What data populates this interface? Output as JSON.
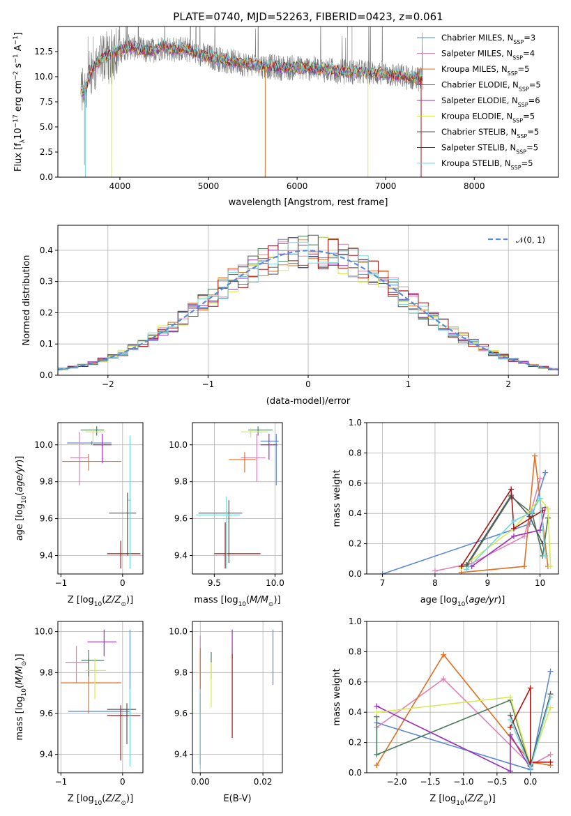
{
  "title": "PLATE=0740, MJD=52263, FIBERID=0423, z=0.061",
  "colors": {
    "Chabrier MILES": "#5a88d6",
    "Salpeter MILES": "#e080b8",
    "Kroupa MILES": "#e07020",
    "Chabrier ELODIE": "#4a7a5a",
    "Salpeter ELODIE": "#9a30b8",
    "Kroupa ELODIE": "#d8ea50",
    "Chabrier STELIB": "#555555",
    "Salpeter STELIB": "#b01010",
    "Kroupa STELIB": "#70d8e0"
  },
  "chart_data": [
    {
      "id": "spectrum",
      "type": "line",
      "title": "PLATE=0740, MJD=52263, FIBERID=0423, z=0.061",
      "xlabel": "wavelength [Angstrom, rest frame]",
      "ylabel": "Flux [f_λ 10^-17 erg cm^-2 s^-1 A^-1]",
      "xlim": [
        3300,
        8950
      ],
      "ylim": [
        0,
        15
      ],
      "xticks": [
        "4000",
        "5000",
        "6000",
        "7000",
        "8000"
      ],
      "yticks": [
        "0.0",
        "2.5",
        "5.0",
        "7.5",
        "10.0",
        "12.5"
      ],
      "legend_position": "top-right",
      "legend": [
        {
          "name": "Chabrier MILES",
          "nssp": "3"
        },
        {
          "name": "Salpeter MILES",
          "nssp": "4"
        },
        {
          "name": "Kroupa MILES",
          "nssp": "5"
        },
        {
          "name": "Chabrier ELODIE",
          "nssp": "5"
        },
        {
          "name": "Salpeter ELODIE",
          "nssp": "6"
        },
        {
          "name": "Kroupa ELODIE",
          "nssp": "5"
        },
        {
          "name": "Chabrier STELIB",
          "nssp": "5"
        },
        {
          "name": "Salpeter STELIB",
          "nssp": "5"
        },
        {
          "name": "Kroupa STELIB",
          "nssp": "5"
        }
      ],
      "legend_prefix": "N",
      "legend_sub": "SSP",
      "continuum": {
        "x": [
          3600,
          3700,
          3800,
          3900,
          4000,
          4100,
          4200,
          4300,
          4400,
          4500,
          4600,
          4700,
          4800,
          4900,
          5000,
          5200,
          5400,
          5600,
          5800,
          6000,
          6200,
          6400,
          6600,
          6800,
          7000,
          7200,
          7400
        ],
        "y": [
          8.5,
          11.0,
          11.8,
          12.3,
          12.6,
          13.0,
          12.8,
          12.5,
          12.7,
          13.0,
          12.7,
          12.8,
          12.6,
          12.2,
          12.0,
          11.6,
          11.3,
          11.1,
          10.9,
          10.9,
          10.8,
          10.6,
          10.5,
          10.4,
          10.3,
          10.0,
          9.8
        ]
      }
    },
    {
      "id": "residuals",
      "type": "bar",
      "xlabel": "(data-model)/error",
      "ylabel": "Normed distribution",
      "xlim": [
        -2.5,
        2.5
      ],
      "ylim": [
        0,
        0.48
      ],
      "xticks": [
        "−2",
        "−1",
        "0",
        "1",
        "2"
      ],
      "yticks": [
        "0.0",
        "0.1",
        "0.2",
        "0.3",
        "0.4"
      ],
      "legend_position": "top-right",
      "legend": [
        "𝒩(0, 1)"
      ],
      "gaussian": {
        "mu": 0,
        "sigma": 1
      }
    },
    {
      "id": "age-vs-Z",
      "type": "scatter",
      "xlabel": "Z [log10(Z/Z⊙)]",
      "ylabel": "age  [log10(age/yr)]",
      "xlim": [
        -1.05,
        0.33
      ],
      "ylim": [
        9.3,
        10.12
      ],
      "xticks": [
        "−1",
        "0"
      ],
      "yticks": [
        "9.4",
        "9.6",
        "9.8",
        "10.0"
      ],
      "points": [
        {
          "s": "Chabrier MILES",
          "x": -0.5,
          "y": 10.01,
          "xl": -0.9,
          "xr": -0.18,
          "yl": 10.0,
          "yh": 10.02
        },
        {
          "s": "Salpeter MILES",
          "x": -0.7,
          "y": 9.93,
          "xl": -0.85,
          "xr": -0.56,
          "yl": 9.78,
          "yh": 10.07
        },
        {
          "s": "Kroupa MILES",
          "x": -0.55,
          "y": 9.91,
          "xl": -0.98,
          "xr": -0.02,
          "yl": 9.86,
          "yh": 9.95
        },
        {
          "s": "Chabrier ELODIE",
          "x": -0.42,
          "y": 10.08,
          "xl": -0.68,
          "xr": -0.3,
          "yl": 10.05,
          "yh": 10.1
        },
        {
          "s": "Salpeter ELODIE",
          "x": -0.33,
          "y": 10.0,
          "xl": -0.48,
          "xr": -0.18,
          "yl": 9.9,
          "yh": 10.06
        },
        {
          "s": "Kroupa ELODIE",
          "x": -0.48,
          "y": 10.07,
          "xl": -0.6,
          "xr": -0.28,
          "yl": 10.01,
          "yh": 10.09
        },
        {
          "s": "Chabrier STELIB",
          "x": 0.08,
          "y": 9.63,
          "xl": -0.22,
          "xr": 0.22,
          "yl": 9.4,
          "yh": 9.74
        },
        {
          "s": "Salpeter STELIB",
          "x": -0.03,
          "y": 9.41,
          "xl": -0.25,
          "xr": 0.29,
          "yl": 9.33,
          "yh": 9.48
        },
        {
          "s": "Kroupa STELIB",
          "x": 0.12,
          "y": 9.7,
          "xl": 0.09,
          "xr": 0.14,
          "yl": 9.33,
          "yh": 10.05
        }
      ]
    },
    {
      "id": "age-vs-mass",
      "type": "scatter",
      "xlabel": "mass [log10(M/M⊙)]",
      "ylabel": "",
      "xlim": [
        9.32,
        10.06
      ],
      "ylim": [
        9.3,
        10.12
      ],
      "xticks": [
        "9.5",
        "10.0"
      ],
      "yticks": [
        "9.4",
        "9.6",
        "9.8",
        "10.0"
      ],
      "points": [
        {
          "s": "Chabrier MILES",
          "x": 10.01,
          "y": 10.02,
          "xl": 9.88,
          "xr": 10.03,
          "yl": 9.78,
          "yh": 10.06
        },
        {
          "s": "Salpeter MILES",
          "x": 9.85,
          "y": 9.93,
          "xl": 9.72,
          "xr": 9.92,
          "yl": 9.8,
          "yh": 10.06
        },
        {
          "s": "Kroupa MILES",
          "x": 9.75,
          "y": 9.92,
          "xl": 9.62,
          "xr": 9.84,
          "yl": 9.85,
          "yh": 9.96
        },
        {
          "s": "Chabrier ELODIE",
          "x": 9.86,
          "y": 10.08,
          "xl": 9.78,
          "xr": 9.98,
          "yl": 10.05,
          "yh": 10.1
        },
        {
          "s": "Salpeter ELODIE",
          "x": 9.95,
          "y": 10.0,
          "xl": 9.88,
          "xr": 10.02,
          "yl": 9.92,
          "yh": 10.06
        },
        {
          "s": "Kroupa ELODIE",
          "x": 9.8,
          "y": 10.07,
          "xl": 9.72,
          "xr": 9.94,
          "yl": 10.04,
          "yh": 10.09
        },
        {
          "s": "Chabrier STELIB",
          "x": 9.62,
          "y": 9.63,
          "xl": 9.37,
          "xr": 9.73,
          "yl": 9.36,
          "yh": 9.7
        },
        {
          "s": "Salpeter STELIB",
          "x": 9.59,
          "y": 9.41,
          "xl": 9.5,
          "xr": 9.88,
          "yl": 9.33,
          "yh": 9.58
        },
        {
          "s": "Kroupa STELIB",
          "x": 9.6,
          "y": 9.62,
          "xl": 9.35,
          "xr": 9.71,
          "yl": 9.33,
          "yh": 9.72
        }
      ]
    },
    {
      "id": "weight-vs-age",
      "type": "line",
      "xlabel": "age  [log10(age/yr)]",
      "ylabel": "mass weight",
      "xlim": [
        6.7,
        10.35
      ],
      "ylim": [
        0,
        1.0
      ],
      "xticks": [
        "7",
        "8",
        "9",
        "10"
      ],
      "yticks": [
        "0.0",
        "0.2",
        "0.4",
        "0.6",
        "0.8",
        "1.0"
      ],
      "series": [
        {
          "s": "Chabrier MILES",
          "x": [
            7.0,
            9.8,
            10.1
          ],
          "y": [
            0.0,
            0.33,
            0.67
          ]
        },
        {
          "s": "Salpeter MILES",
          "x": [
            8.0,
            8.7,
            9.7,
            10.0
          ],
          "y": [
            0.02,
            0.07,
            0.25,
            0.63
          ]
        },
        {
          "s": "Kroupa MILES",
          "x": [
            8.5,
            9.7,
            9.9,
            10.15
          ],
          "y": [
            0.01,
            0.05,
            0.78,
            0.05
          ]
        },
        {
          "s": "Chabrier ELODIE",
          "x": [
            8.6,
            9.45,
            9.85,
            10.05,
            10.15
          ],
          "y": [
            0.05,
            0.51,
            0.4,
            0.12,
            0.37
          ]
        },
        {
          "s": "Salpeter ELODIE",
          "x": [
            8.7,
            9.5,
            10.0,
            10.1
          ],
          "y": [
            0.05,
            0.25,
            0.29,
            0.44
          ]
        },
        {
          "s": "Kroupa ELODIE",
          "x": [
            8.5,
            9.5,
            10.0,
            10.15,
            10.2
          ],
          "y": [
            0.04,
            0.3,
            0.5,
            0.43,
            0.05
          ]
        },
        {
          "s": "Chabrier STELIB",
          "x": [
            8.6,
            9.45,
            9.8,
            10.05
          ],
          "y": [
            0.06,
            0.52,
            0.38,
            0.2
          ]
        },
        {
          "s": "Salpeter STELIB",
          "x": [
            8.5,
            9.45,
            9.5,
            10.05
          ],
          "y": [
            0.05,
            0.56,
            0.3,
            0.42
          ]
        },
        {
          "s": "Kroupa STELIB",
          "x": [
            8.6,
            9.5,
            9.85,
            10.0,
            10.1
          ],
          "y": [
            0.03,
            0.35,
            0.41,
            0.5,
            0.12
          ]
        }
      ]
    },
    {
      "id": "mass-vs-Z",
      "type": "scatter",
      "xlabel": "Z [log10(Z/Z⊙)]",
      "ylabel": "mass [log10(M/M⊙)]",
      "xlim": [
        -1.05,
        0.33
      ],
      "ylim": [
        9.31,
        10.05
      ],
      "xticks": [
        "−1",
        "0"
      ],
      "yticks": [
        "9.4",
        "9.6",
        "9.8",
        "10.0"
      ],
      "points": [
        {
          "s": "Chabrier MILES",
          "x": 0.12,
          "y": 9.61,
          "xl": -0.88,
          "xr": 0.12,
          "yl": 9.58,
          "yh": 10.01
        },
        {
          "s": "Salpeter MILES",
          "x": -0.75,
          "y": 9.85,
          "xl": -0.93,
          "xr": -0.55,
          "yl": 9.75,
          "yh": 9.93
        },
        {
          "s": "Kroupa MILES",
          "x": -0.55,
          "y": 9.75,
          "xl": -1.0,
          "xr": -0.02,
          "yl": 9.6,
          "yh": 9.87
        },
        {
          "s": "Chabrier ELODIE",
          "x": -0.55,
          "y": 9.86,
          "xl": -0.67,
          "xr": -0.3,
          "yl": 9.78,
          "yh": 9.91
        },
        {
          "s": "Salpeter ELODIE",
          "x": -0.3,
          "y": 9.95,
          "xl": -0.57,
          "xr": -0.1,
          "yl": 9.88,
          "yh": 10.01
        },
        {
          "s": "Kroupa ELODIE",
          "x": -0.45,
          "y": 9.81,
          "xl": -0.6,
          "xr": -0.27,
          "yl": 9.67,
          "yh": 9.87
        },
        {
          "s": "Chabrier STELIB",
          "x": 0.07,
          "y": 9.62,
          "xl": -0.25,
          "xr": 0.22,
          "yl": 9.45,
          "yh": 9.65
        },
        {
          "s": "Salpeter STELIB",
          "x": -0.03,
          "y": 9.59,
          "xl": -0.25,
          "xr": 0.29,
          "yl": 9.37,
          "yh": 9.64
        },
        {
          "s": "Kroupa STELIB",
          "x": 0.12,
          "y": 9.6,
          "xl": 0.09,
          "xr": 0.14,
          "yl": 9.34,
          "yh": 9.72
        }
      ]
    },
    {
      "id": "mass-vs-ebv",
      "type": "scatter",
      "xlabel": "E(B-V)",
      "ylabel": "",
      "xlim": [
        -0.0025,
        0.0262
      ],
      "ylim": [
        9.31,
        10.05
      ],
      "xticks": [
        "0.00",
        "0.02"
      ],
      "yticks": [
        "9.4",
        "9.6",
        "9.8",
        "10.0"
      ],
      "points": [
        {
          "s": "Chabrier MILES",
          "x": 0.0232,
          "y": 9.87,
          "yl": 9.74,
          "yh": 10.01
        },
        {
          "s": "Salpeter MILES",
          "x": 0.0,
          "y": 9.85,
          "yl": 9.71,
          "yh": 9.98
        },
        {
          "s": "Kroupa MILES",
          "x": 0.0,
          "y": 9.75,
          "yl": 9.6,
          "yh": 9.92
        },
        {
          "s": "Chabrier ELODIE",
          "x": 0.0035,
          "y": 9.85,
          "yl": 9.77,
          "yh": 9.9
        },
        {
          "s": "Salpeter ELODIE",
          "x": 0.0102,
          "y": 9.94,
          "yl": 9.87,
          "yh": 10.01
        },
        {
          "s": "Kroupa ELODIE",
          "x": 0.0035,
          "y": 9.77,
          "yl": 9.63,
          "yh": 9.85
        },
        {
          "s": "Chabrier STELIB",
          "x": 0.0,
          "y": 9.55,
          "yl": 9.35,
          "yh": 9.7
        },
        {
          "s": "Salpeter STELIB",
          "x": 0.0102,
          "y": 9.75,
          "yl": 9.48,
          "yh": 9.89
        },
        {
          "s": "Kroupa STELIB",
          "x": 0.0,
          "y": 9.55,
          "yl": 9.33,
          "yh": 9.72
        }
      ]
    },
    {
      "id": "weight-vs-Z",
      "type": "line",
      "xlabel": "Z [log10(Z/Z⊙)]",
      "ylabel": "mass weight",
      "xlim": [
        -2.45,
        0.42
      ],
      "ylim": [
        0,
        1.0
      ],
      "xticks": [
        "−2.0",
        "−1.5",
        "−1.0",
        "−0.5",
        "0.0"
      ],
      "yticks": [
        "0.0",
        "0.2",
        "0.4",
        "0.6",
        "0.8",
        "1.0"
      ],
      "series": [
        {
          "s": "Chabrier MILES",
          "x": [
            -2.3,
            0.0,
            0.3
          ],
          "y": [
            0.33,
            0.02,
            0.67
          ]
        },
        {
          "s": "Salpeter MILES",
          "x": [
            -2.3,
            -1.3,
            0.0,
            0.3
          ],
          "y": [
            0.3,
            0.62,
            0.05,
            0.12
          ]
        },
        {
          "s": "Kroupa MILES",
          "x": [
            -2.3,
            -1.3,
            0.0,
            0.3
          ],
          "y": [
            0.05,
            0.78,
            0.07,
            0.05
          ]
        },
        {
          "s": "Chabrier ELODIE",
          "x": [
            -2.3,
            -2.3,
            -0.3,
            0.0,
            0.3
          ],
          "y": [
            0.37,
            0.12,
            0.48,
            0.04,
            0.5
          ]
        },
        {
          "s": "Salpeter ELODIE",
          "x": [
            -2.3,
            -0.3,
            -0.3,
            0.0
          ],
          "y": [
            0.44,
            0.01,
            0.25,
            0.03
          ]
        },
        {
          "s": "Kroupa ELODIE",
          "x": [
            -2.3,
            -0.3,
            0.0,
            0.3
          ],
          "y": [
            0.4,
            0.5,
            0.05,
            0.43
          ]
        },
        {
          "s": "Chabrier STELIB",
          "x": [
            -0.3,
            0.0,
            0.3
          ],
          "y": [
            0.38,
            0.05,
            0.52
          ]
        },
        {
          "s": "Salpeter STELIB",
          "x": [
            -0.3,
            0.0,
            0.0,
            0.3
          ],
          "y": [
            0.3,
            0.56,
            0.07,
            0.07
          ]
        },
        {
          "s": "Kroupa STELIB",
          "x": [
            -0.3,
            0.0,
            0.3
          ],
          "y": [
            0.35,
            0.03,
            0.5
          ]
        }
      ]
    }
  ]
}
